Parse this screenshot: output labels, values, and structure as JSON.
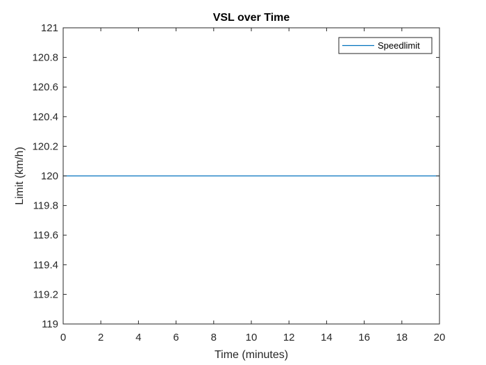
{
  "chart_data": {
    "type": "line",
    "title": "VSL over Time",
    "xlabel": "Time (minutes)",
    "ylabel": "Limit (km/h)",
    "xlim": [
      0,
      20
    ],
    "ylim": [
      119,
      121
    ],
    "xticks": [
      0,
      2,
      4,
      6,
      8,
      10,
      12,
      14,
      16,
      18,
      20
    ],
    "yticks": [
      119,
      119.2,
      119.4,
      119.6,
      119.8,
      120,
      120.2,
      120.4,
      120.6,
      120.8,
      121
    ],
    "xtick_labels": [
      "0",
      "2",
      "4",
      "6",
      "8",
      "10",
      "12",
      "14",
      "16",
      "18",
      "20"
    ],
    "ytick_labels": [
      "119",
      "119.2",
      "119.4",
      "119.6",
      "119.8",
      "120",
      "120.2",
      "120.4",
      "120.6",
      "120.8",
      "121"
    ],
    "grid": false,
    "legend_position": "top-right",
    "series": [
      {
        "name": "Speedlimit",
        "color": "#0072BD",
        "x": [
          0,
          20
        ],
        "y": [
          120,
          120
        ]
      }
    ]
  }
}
